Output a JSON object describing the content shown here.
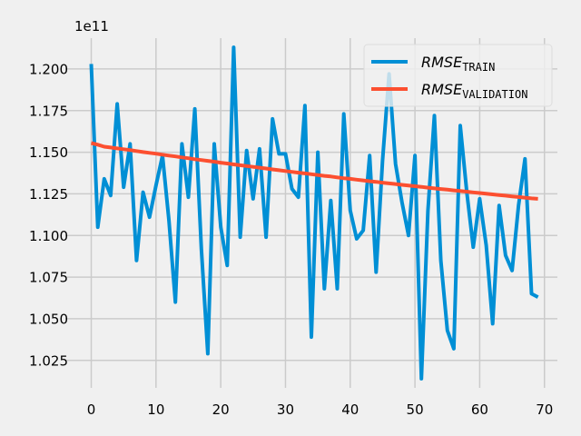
{
  "chart_data": {
    "type": "line",
    "title": "",
    "xlabel": "",
    "ylabel": "",
    "y_offset_label": "1e11",
    "xlim": [
      -4,
      72
    ],
    "ylim": [
      1.0085,
      1.2185
    ],
    "x_ticks": [
      0,
      10,
      20,
      30,
      40,
      50,
      60,
      70
    ],
    "y_ticks": [
      1.025,
      1.05,
      1.075,
      1.1,
      1.125,
      1.15,
      1.175,
      1.2
    ],
    "grid": true,
    "legend_position": "top-right",
    "series": [
      {
        "name": "RMSE_TRAIN",
        "legend_main": "RMSE",
        "legend_sub": "TRAIN",
        "color": "#008fd5",
        "x": [
          0,
          1,
          2,
          3,
          4,
          5,
          6,
          7,
          8,
          9,
          10,
          11,
          12,
          13,
          14,
          15,
          16,
          17,
          18,
          19,
          20,
          21,
          22,
          23,
          24,
          25,
          26,
          27,
          28,
          29,
          30,
          31,
          32,
          33,
          34,
          35,
          36,
          37,
          38,
          39,
          40,
          41,
          42,
          43,
          44,
          45,
          46,
          47,
          48,
          49,
          50,
          51,
          52,
          53,
          54,
          55,
          56,
          57,
          58,
          59,
          60,
          61,
          62,
          63,
          64,
          65,
          66,
          67,
          68,
          69
        ],
        "y": [
          1.203,
          1.105,
          1.134,
          1.124,
          1.179,
          1.129,
          1.155,
          1.085,
          1.126,
          1.111,
          1.13,
          1.148,
          1.109,
          1.06,
          1.155,
          1.123,
          1.176,
          1.092,
          1.029,
          1.155,
          1.105,
          1.082,
          1.213,
          1.099,
          1.151,
          1.122,
          1.152,
          1.099,
          1.17,
          1.149,
          1.149,
          1.128,
          1.123,
          1.178,
          1.039,
          1.15,
          1.068,
          1.121,
          1.068,
          1.173,
          1.115,
          1.098,
          1.103,
          1.148,
          1.078,
          1.145,
          1.197,
          1.143,
          1.12,
          1.1,
          1.148,
          1.014,
          1.115,
          1.172,
          1.085,
          1.043,
          1.032,
          1.166,
          1.126,
          1.093,
          1.122,
          1.094,
          1.047,
          1.118,
          1.088,
          1.079,
          1.118,
          1.146,
          1.065,
          1.063
        ]
      },
      {
        "name": "RMSE_VALIDATION",
        "legend_main": "RMSE",
        "legend_sub": "VALIDATION",
        "color": "#fc4f30",
        "x": [
          0,
          1,
          2,
          3,
          4,
          5,
          6,
          7,
          8,
          9,
          10,
          11,
          12,
          13,
          14,
          15,
          16,
          17,
          18,
          19,
          20,
          21,
          22,
          23,
          24,
          25,
          26,
          27,
          28,
          29,
          30,
          31,
          32,
          33,
          34,
          35,
          36,
          37,
          38,
          39,
          40,
          41,
          42,
          43,
          44,
          45,
          46,
          47,
          48,
          49,
          50,
          51,
          52,
          53,
          54,
          55,
          56,
          57,
          58,
          59,
          60,
          61,
          62,
          63,
          64,
          65,
          66,
          67,
          68,
          69
        ],
        "y": [
          1.1555,
          1.1545,
          1.1533,
          1.1528,
          1.1523,
          1.1518,
          1.1513,
          1.1507,
          1.1501,
          1.1496,
          1.1491,
          1.1485,
          1.148,
          1.1475,
          1.1469,
          1.1464,
          1.1458,
          1.1453,
          1.1448,
          1.1443,
          1.1437,
          1.1432,
          1.1427,
          1.1422,
          1.1417,
          1.1412,
          1.1407,
          1.1402,
          1.1397,
          1.1392,
          1.1387,
          1.1382,
          1.1377,
          1.1373,
          1.1368,
          1.1363,
          1.1358,
          1.1354,
          1.1349,
          1.1344,
          1.134,
          1.1335,
          1.1331,
          1.1326,
          1.1322,
          1.1317,
          1.1313,
          1.1309,
          1.1304,
          1.13,
          1.1296,
          1.1292,
          1.1287,
          1.1283,
          1.1279,
          1.1275,
          1.1271,
          1.1267,
          1.1263,
          1.1259,
          1.1255,
          1.1251,
          1.1247,
          1.1243,
          1.1239,
          1.1235,
          1.1231,
          1.1227,
          1.1223,
          1.122
        ]
      }
    ]
  }
}
